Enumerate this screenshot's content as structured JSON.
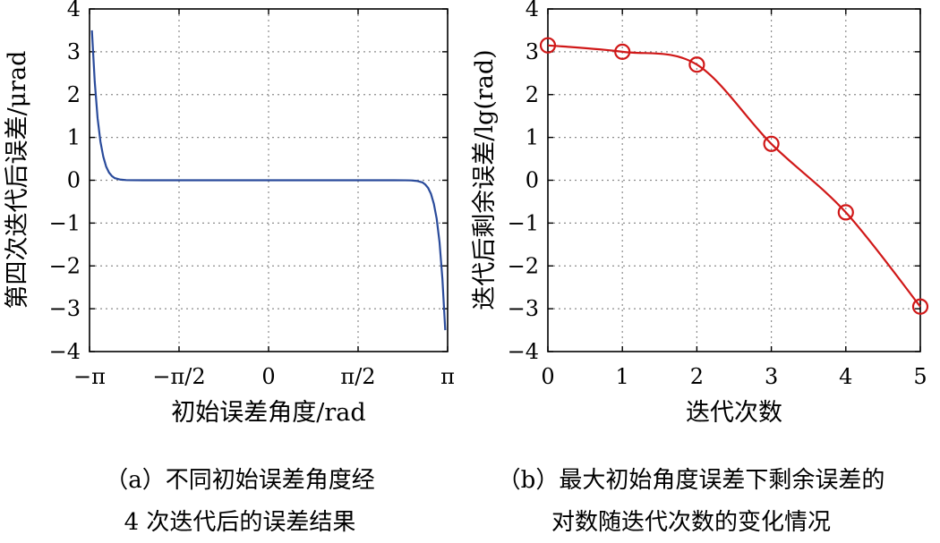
{
  "chart_data": [
    {
      "type": "line",
      "panel": "a",
      "xlabel": "初始误差角度/rad",
      "ylabel": "第四次迭代后误差/μrad",
      "xlim": [
        -3.1416,
        3.1416
      ],
      "ylim": [
        -4,
        4
      ],
      "xticks": [
        -3.1416,
        -1.5708,
        0,
        1.5708,
        3.1416
      ],
      "xtick_labels": [
        "−π",
        "−π/2",
        "0",
        "π/2",
        "π"
      ],
      "yticks": [
        4,
        3,
        2,
        1,
        0,
        -1,
        -2,
        -3,
        -4
      ],
      "ytick_labels": [
        "4",
        "3",
        "2",
        "1",
        "0",
        "−1",
        "−2",
        "−3",
        "−4"
      ],
      "grid": true,
      "color": "#2a4b9b",
      "x": [
        -3.1,
        -3.05,
        -3.0,
        -2.95,
        -2.9,
        -2.85,
        -2.8,
        -2.75,
        -2.7,
        -2.6,
        -2.5,
        -2.4,
        -2.2,
        -2.0,
        0,
        2.0,
        2.2,
        2.4,
        2.5,
        2.6,
        2.7,
        2.75,
        2.8,
        2.85,
        2.9,
        2.95,
        3.0,
        3.05,
        3.1
      ],
      "y": [
        3.5,
        2.3,
        1.45,
        0.9,
        0.55,
        0.32,
        0.18,
        0.1,
        0.05,
        0.015,
        0.004,
        0.001,
        0,
        0,
        0,
        0,
        0,
        -0.001,
        -0.004,
        -0.015,
        -0.05,
        -0.1,
        -0.18,
        -0.32,
        -0.55,
        -0.9,
        -1.45,
        -2.3,
        -3.5
      ]
    },
    {
      "type": "line",
      "panel": "b",
      "xlabel": "迭代次数",
      "ylabel": "迭代后剩余误差/lg(rad)",
      "xlim": [
        0,
        5
      ],
      "ylim": [
        -4,
        4
      ],
      "xticks": [
        0,
        1,
        2,
        3,
        4,
        5
      ],
      "xtick_labels": [
        "0",
        "1",
        "2",
        "3",
        "4",
        "5"
      ],
      "yticks": [
        4,
        3,
        2,
        1,
        0,
        -1,
        -2,
        -3,
        -4
      ],
      "ytick_labels": [
        "4",
        "3",
        "2",
        "1",
        "0",
        "−1",
        "−2",
        "−3",
        "−4"
      ],
      "grid": true,
      "color": "#d01818",
      "marker": "circle",
      "x": [
        0,
        1,
        2,
        3,
        4,
        5
      ],
      "y": [
        3.15,
        3.0,
        2.7,
        0.85,
        -0.75,
        -2.95
      ]
    }
  ],
  "captions": {
    "a_line1": "（a）不同初始误差角度经",
    "a_line2": "4 次迭代后的误差结果",
    "b_line1": "（b）最大初始角度误差下剩余误差的",
    "b_line2": "对数随迭代次数的变化情况"
  }
}
